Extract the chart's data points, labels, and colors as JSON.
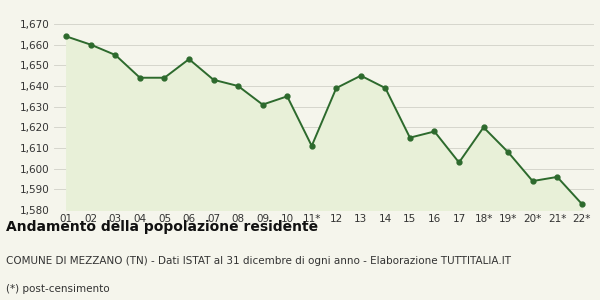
{
  "x_labels": [
    "01",
    "02",
    "03",
    "04",
    "05",
    "06",
    "07",
    "08",
    "09",
    "10",
    "11*",
    "12",
    "13",
    "14",
    "15",
    "16",
    "17",
    "18*",
    "19*",
    "20*",
    "21*",
    "22*"
  ],
  "values": [
    1664,
    1660,
    1655,
    1644,
    1644,
    1653,
    1643,
    1640,
    1631,
    1635,
    1611,
    1639,
    1645,
    1639,
    1615,
    1618,
    1603,
    1620,
    1608,
    1594,
    1596,
    1583
  ],
  "line_color": "#2d6a2d",
  "fill_color": "#e8f0d8",
  "marker": "o",
  "marker_size": 3.5,
  "line_width": 1.4,
  "ylim": [
    1580,
    1670
  ],
  "yticks": [
    1580,
    1590,
    1600,
    1610,
    1620,
    1630,
    1640,
    1650,
    1660,
    1670
  ],
  "grid_color": "#d0d0c8",
  "bg_color": "#f5f5ec",
  "title": "Andamento della popolazione residente",
  "subtitle": "COMUNE DI MEZZANO (TN) - Dati ISTAT al 31 dicembre di ogni anno - Elaborazione TUTTITALIA.IT",
  "footnote": "(*) post-censimento",
  "title_fontsize": 10,
  "subtitle_fontsize": 7.5,
  "footnote_fontsize": 7.5
}
